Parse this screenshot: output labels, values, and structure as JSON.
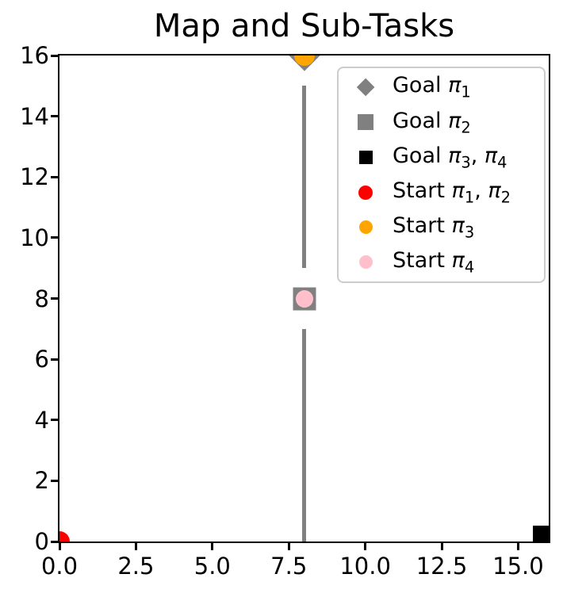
{
  "chart_data": {
    "type": "scatter",
    "title": "Map and Sub-Tasks",
    "xlabel": "",
    "ylabel": "",
    "xlim": [
      0,
      16
    ],
    "ylim": [
      0,
      16
    ],
    "grid": false,
    "background": "#ffffff",
    "spine_color": "#000000",
    "xticks": {
      "values": [
        0,
        2.5,
        5,
        7.5,
        10,
        12.5,
        15
      ],
      "labels": [
        "0.0",
        "2.5",
        "5.0",
        "7.5",
        "10.0",
        "12.5",
        "15.0"
      ]
    },
    "yticks": {
      "values": [
        0,
        2,
        4,
        6,
        8,
        10,
        12,
        14,
        16
      ],
      "labels": [
        "0",
        "2",
        "4",
        "6",
        "8",
        "10",
        "12",
        "14",
        "16"
      ]
    },
    "walls": {
      "color": "#808080",
      "width": 5,
      "segments": [
        {
          "x": 8,
          "y1": 0,
          "y2": 7
        },
        {
          "x": 8,
          "y1": 9,
          "y2": 15
        }
      ]
    },
    "series": [
      {
        "id": "goal-pi1",
        "name": "Goal π₁",
        "marker": "diamond",
        "color": "#808080",
        "size": 40,
        "legend_size": 23,
        "points": [
          [
            8,
            16
          ]
        ]
      },
      {
        "id": "goal-pi2",
        "name": "Goal π₂",
        "marker": "square",
        "color": "#808080",
        "size": 29,
        "legend_size": 20,
        "points": [
          [
            8,
            8
          ]
        ]
      },
      {
        "id": "goal-pi3-pi4",
        "name": "Goal π₃, π₄",
        "marker": "square",
        "color": "#000000",
        "size": 20,
        "legend_size": 17,
        "points": [
          [
            15.74,
            0.26
          ]
        ]
      },
      {
        "id": "start-pi1-pi2",
        "name": "Start π₁, π₂",
        "marker": "circle",
        "color": "#ff0000",
        "size": 26,
        "legend_size": 18,
        "points": [
          [
            0,
            0
          ]
        ]
      },
      {
        "id": "start-pi3",
        "name": "Start π₃",
        "marker": "circle",
        "color": "#ffa500",
        "size": 26,
        "legend_size": 17,
        "points": [
          [
            8,
            16
          ]
        ]
      },
      {
        "id": "start-pi4",
        "name": "Start π₄",
        "marker": "circle",
        "color": "#ffc0cb",
        "size": 22,
        "legend_size": 17,
        "points": [
          [
            8,
            8
          ]
        ]
      }
    ],
    "legend": {
      "position": "upper right",
      "border_color": "#cccccc",
      "background": "#ffffff"
    }
  }
}
